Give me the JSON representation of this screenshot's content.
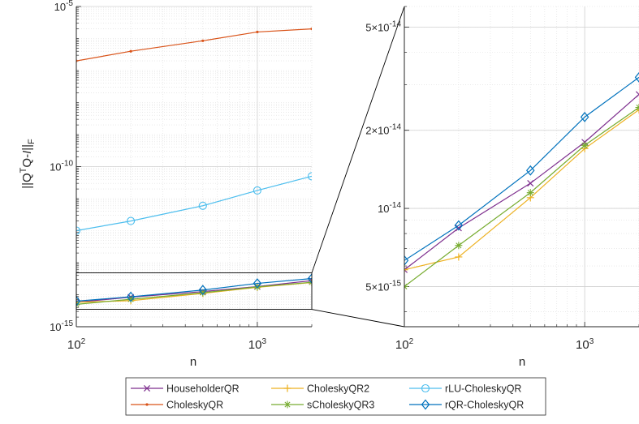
{
  "chart_data": [
    {
      "type": "line",
      "panel": "left",
      "xscale": "log",
      "yscale": "log",
      "xlim": [
        100,
        2000
      ],
      "ylim": [
        1e-15,
        1e-05
      ],
      "grid": true,
      "xlabel": "n",
      "ylabel": "||Q^TQ-I||_F",
      "x_tick_labels": [
        {
          "value": 100,
          "base": "10",
          "exp": "2"
        },
        {
          "value": 1000,
          "base": "10",
          "exp": "3"
        }
      ],
      "y_tick_labels": [
        {
          "value": 1e-15,
          "base": "10",
          "exp": "-15"
        },
        {
          "value": 1e-10,
          "base": "10",
          "exp": "-10"
        },
        {
          "value": 1e-05,
          "base": "10",
          "exp": "-5"
        }
      ],
      "x": [
        100,
        200,
        500,
        1000,
        2000
      ],
      "series": [
        {
          "name": "HouseholderQR",
          "color": "#7E2F8E",
          "marker": "x",
          "values": [
            5.8e-15,
            8.4e-15,
            1.25e-14,
            1.8e-14,
            2.75e-14
          ]
        },
        {
          "name": "CholeskyQR",
          "color": "#D95319",
          "marker": "dot",
          "values": [
            2e-07,
            4e-07,
            8.5e-07,
            1.6e-06,
            2e-06
          ]
        },
        {
          "name": "CholeskyQR2",
          "color": "#EDB120",
          "marker": "+",
          "values": [
            5.8e-15,
            6.5e-15,
            1.1e-14,
            1.7e-14,
            2.4e-14
          ]
        },
        {
          "name": "sCholeskyQR3",
          "color": "#77AC30",
          "marker": "*",
          "values": [
            5e-15,
            7.2e-15,
            1.15e-14,
            1.75e-14,
            2.45e-14
          ]
        },
        {
          "name": "rLU-CholeskyQR",
          "color": "#4DBEEE",
          "marker": "o",
          "values": [
            1e-12,
            2e-12,
            6e-12,
            1.8e-11,
            5e-11
          ]
        },
        {
          "name": "rQR-CholeskyQR",
          "color": "#0072BD",
          "marker": "diamond",
          "values": [
            6.3e-15,
            8.6e-15,
            1.4e-14,
            2.25e-14,
            3.2e-14
          ]
        }
      ],
      "zoom_box": {
        "xlim": [
          100,
          2000
        ],
        "ylim": [
          3.5e-15,
          4.8e-14
        ]
      }
    },
    {
      "type": "line",
      "panel": "right",
      "xscale": "log",
      "yscale": "log",
      "xlim": [
        100,
        2000
      ],
      "ylim": [
        3.5e-15,
        6e-14
      ],
      "grid": true,
      "xlabel": "n",
      "x_tick_labels": [
        {
          "value": 100,
          "base": "10",
          "exp": "2"
        },
        {
          "value": 1000,
          "base": "10",
          "exp": "3"
        }
      ],
      "y_tick_labels": [
        {
          "value": 5e-15,
          "base": "5×10",
          "exp": "-15"
        },
        {
          "value": 1e-14,
          "base": "10",
          "exp": "-14"
        },
        {
          "value": 2e-14,
          "base": "2×10",
          "exp": "-14"
        },
        {
          "value": 5e-14,
          "base": "5×10",
          "exp": "-14"
        }
      ],
      "x": [
        100,
        200,
        500,
        1000,
        2000
      ],
      "series": [
        {
          "name": "HouseholderQR",
          "color": "#7E2F8E",
          "marker": "x",
          "values": [
            5.8e-15,
            8.4e-15,
            1.25e-14,
            1.8e-14,
            2.75e-14
          ]
        },
        {
          "name": "CholeskyQR2",
          "color": "#EDB120",
          "marker": "+",
          "values": [
            5.8e-15,
            6.5e-15,
            1.1e-14,
            1.7e-14,
            2.4e-14
          ]
        },
        {
          "name": "sCholeskyQR3",
          "color": "#77AC30",
          "marker": "*",
          "values": [
            5e-15,
            7.2e-15,
            1.15e-14,
            1.75e-14,
            2.45e-14
          ]
        },
        {
          "name": "rQR-CholeskyQR",
          "color": "#0072BD",
          "marker": "diamond",
          "values": [
            6.3e-15,
            8.6e-15,
            1.4e-14,
            2.25e-14,
            3.2e-14
          ]
        }
      ]
    }
  ],
  "legend": {
    "placement": "bottom",
    "entries": [
      {
        "label": "HouseholderQR",
        "color": "#7E2F8E",
        "marker": "x"
      },
      {
        "label": "CholeskyQR2",
        "color": "#EDB120",
        "marker": "+"
      },
      {
        "label": "rLU-CholeskyQR",
        "color": "#4DBEEE",
        "marker": "o"
      },
      {
        "label": "CholeskyQR",
        "color": "#D95319",
        "marker": "dot"
      },
      {
        "label": "sCholeskyQR3",
        "color": "#77AC30",
        "marker": "*"
      },
      {
        "label": "rQR-CholeskyQR",
        "color": "#0072BD",
        "marker": "diamond"
      }
    ]
  },
  "colors": {
    "axis": "#262626",
    "grid": "#dcdcdc",
    "background": "#ffffff"
  }
}
